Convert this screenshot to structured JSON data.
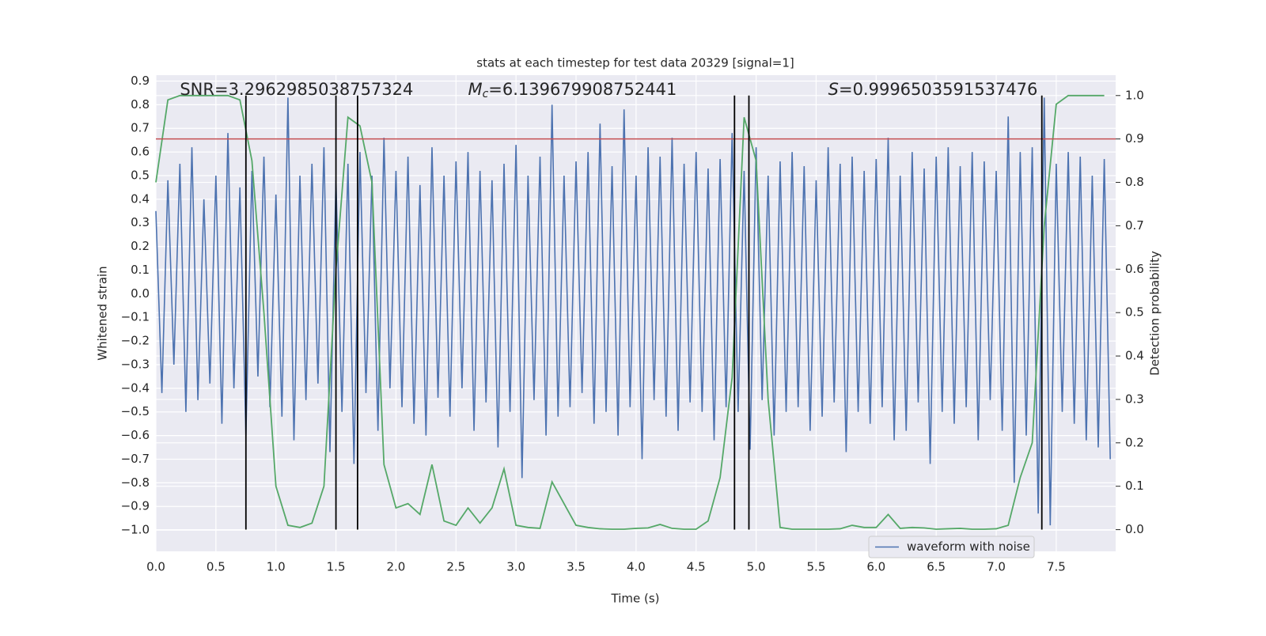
{
  "chart_data": {
    "type": "line",
    "title": "stats at each timestep for test data 20329 [signal=1]",
    "xlabel": "Time (s)",
    "ylabel": "Whitened strain",
    "y2label": "Detection probability",
    "annotations": [
      {
        "text": "SNR=3.2962985038757324",
        "x": 0.2
      },
      {
        "symbol": "M",
        "subscript": "c",
        "text": "=6.139679908752441",
        "x": 2.6
      },
      {
        "symbol": "S",
        "text": "=0.9996503591537476",
        "x": 5.6
      }
    ],
    "xlim": [
      0,
      7.995
    ],
    "ylim": [
      -1.09,
      0.925
    ],
    "y2lim": [
      -0.05,
      1.047
    ],
    "xticks": [
      {
        "value": 0,
        "label": "0.0"
      },
      {
        "value": 0.5,
        "label": "0.5"
      },
      {
        "value": 1,
        "label": "1.0"
      },
      {
        "value": 1.5,
        "label": "1.5"
      },
      {
        "value": 2,
        "label": "2.0"
      },
      {
        "value": 2.5,
        "label": "2.5"
      },
      {
        "value": 3,
        "label": "3.0"
      },
      {
        "value": 3.5,
        "label": "3.5"
      },
      {
        "value": 4,
        "label": "4.0"
      },
      {
        "value": 4.5,
        "label": "4.5"
      },
      {
        "value": 5,
        "label": "5.0"
      },
      {
        "value": 5.5,
        "label": "5.5"
      },
      {
        "value": 6,
        "label": "6.0"
      },
      {
        "value": 6.5,
        "label": "6.5"
      },
      {
        "value": 7,
        "label": "7.0"
      },
      {
        "value": 7.5,
        "label": "7.5"
      }
    ],
    "yticks": [
      {
        "value": -1,
        "label": "−1.0"
      },
      {
        "value": -0.9,
        "label": "−0.9"
      },
      {
        "value": -0.8,
        "label": "−0.8"
      },
      {
        "value": -0.7,
        "label": "−0.7"
      },
      {
        "value": -0.6,
        "label": "−0.6"
      },
      {
        "value": -0.5,
        "label": "−0.5"
      },
      {
        "value": -0.4,
        "label": "−0.4"
      },
      {
        "value": -0.3,
        "label": "−0.3"
      },
      {
        "value": -0.2,
        "label": "−0.2"
      },
      {
        "value": -0.1,
        "label": "−0.1"
      },
      {
        "value": 0,
        "label": "0.0"
      },
      {
        "value": 0.1,
        "label": "0.1"
      },
      {
        "value": 0.2,
        "label": "0.2"
      },
      {
        "value": 0.3,
        "label": "0.3"
      },
      {
        "value": 0.4,
        "label": "0.4"
      },
      {
        "value": 0.5,
        "label": "0.5"
      },
      {
        "value": 0.6,
        "label": "0.6"
      },
      {
        "value": 0.7,
        "label": "0.7"
      },
      {
        "value": 0.8,
        "label": "0.8"
      },
      {
        "value": 0.9,
        "label": "0.9"
      }
    ],
    "y2ticks": [
      {
        "value": 0,
        "label": "0.0"
      },
      {
        "value": 0.1,
        "label": "0.1"
      },
      {
        "value": 0.2,
        "label": "0.2"
      },
      {
        "value": 0.3,
        "label": "0.3"
      },
      {
        "value": 0.4,
        "label": "0.4"
      },
      {
        "value": 0.5,
        "label": "0.5"
      },
      {
        "value": 0.6,
        "label": "0.6"
      },
      {
        "value": 0.7,
        "label": "0.7"
      },
      {
        "value": 0.8,
        "label": "0.8"
      },
      {
        "value": 0.9,
        "label": "0.9"
      },
      {
        "value": 1,
        "label": "1.0"
      }
    ],
    "grid": true,
    "legend": "lower right",
    "series": [
      {
        "name": "waveform with noise",
        "color": "#4c72b0",
        "x": [
          0,
          0.05,
          0.1,
          0.15,
          0.2,
          0.25,
          0.3,
          0.35,
          0.4,
          0.45,
          0.5,
          0.55,
          0.6,
          0.65,
          0.7,
          0.75,
          0.8,
          0.85,
          0.9,
          0.95,
          1,
          1.05,
          1.1,
          1.15,
          1.2,
          1.25,
          1.3,
          1.35,
          1.4,
          1.45,
          1.5,
          1.55,
          1.6,
          1.65,
          1.7,
          1.75,
          1.8,
          1.85,
          1.9,
          1.95,
          2,
          2.05,
          2.1,
          2.15,
          2.2,
          2.25,
          2.3,
          2.35,
          2.4,
          2.45,
          2.5,
          2.55,
          2.6,
          2.65,
          2.7,
          2.75,
          2.8,
          2.85,
          2.9,
          2.95,
          3,
          3.05,
          3.1,
          3.15,
          3.2,
          3.25,
          3.3,
          3.35,
          3.4,
          3.45,
          3.5,
          3.55,
          3.6,
          3.65,
          3.7,
          3.75,
          3.8,
          3.85,
          3.9,
          3.95,
          4,
          4.05,
          4.1,
          4.15,
          4.2,
          4.25,
          4.3,
          4.35,
          4.4,
          4.45,
          4.5,
          4.55,
          4.6,
          4.65,
          4.7,
          4.75,
          4.8,
          4.85,
          4.9,
          4.95,
          5,
          5.05,
          5.1,
          5.15,
          5.2,
          5.25,
          5.3,
          5.35,
          5.4,
          5.45,
          5.5,
          5.55,
          5.6,
          5.65,
          5.7,
          5.75,
          5.8,
          5.85,
          5.9,
          5.95,
          6,
          6.05,
          6.1,
          6.15,
          6.2,
          6.25,
          6.3,
          6.35,
          6.4,
          6.45,
          6.5,
          6.55,
          6.6,
          6.65,
          6.7,
          6.75,
          6.8,
          6.85,
          6.9,
          6.95,
          7,
          7.05,
          7.1,
          7.15,
          7.2,
          7.25,
          7.3,
          7.35,
          7.4,
          7.45,
          7.5,
          7.55,
          7.6,
          7.65,
          7.7,
          7.75,
          7.8,
          7.85,
          7.9,
          7.95
        ],
        "values": [
          0.35,
          -0.42,
          0.48,
          -0.3,
          0.55,
          -0.5,
          0.62,
          -0.45,
          0.4,
          -0.38,
          0.5,
          -0.55,
          0.68,
          -0.4,
          0.45,
          -0.6,
          0.52,
          -0.35,
          0.58,
          -0.48,
          0.42,
          -0.52,
          0.83,
          -0.62,
          0.5,
          -0.45,
          0.55,
          -0.38,
          0.62,
          -0.67,
          0.48,
          -0.5,
          0.55,
          -0.72,
          0.6,
          -0.42,
          0.5,
          -0.58,
          0.66,
          -0.4,
          0.52,
          -0.48,
          0.58,
          -0.55,
          0.46,
          -0.6,
          0.62,
          -0.44,
          0.5,
          -0.52,
          0.56,
          -0.4,
          0.6,
          -0.58,
          0.52,
          -0.46,
          0.48,
          -0.65,
          0.55,
          -0.5,
          0.63,
          -0.78,
          0.5,
          -0.45,
          0.58,
          -0.6,
          0.8,
          -0.52,
          0.5,
          -0.48,
          0.56,
          -0.42,
          0.6,
          -0.55,
          0.72,
          -0.5,
          0.54,
          -0.6,
          0.78,
          -0.48,
          0.5,
          -0.7,
          0.62,
          -0.45,
          0.58,
          -0.52,
          0.66,
          -0.58,
          0.55,
          -0.46,
          0.6,
          -0.5,
          0.53,
          -0.62,
          0.57,
          -0.48,
          0.68,
          -0.5,
          0.52,
          -0.66,
          0.62,
          -0.45,
          0.5,
          -0.6,
          0.56,
          -0.5,
          0.6,
          -0.48,
          0.54,
          -0.58,
          0.48,
          -0.52,
          0.62,
          -0.46,
          0.55,
          -0.67,
          0.58,
          -0.5,
          0.52,
          -0.55,
          0.57,
          -0.48,
          0.66,
          -0.62,
          0.5,
          -0.58,
          0.6,
          -0.46,
          0.53,
          -0.72,
          0.58,
          -0.5,
          0.62,
          -0.55,
          0.54,
          -0.48,
          0.6,
          -0.62,
          0.56,
          -0.45,
          0.52,
          -0.58,
          0.75,
          -0.8,
          0.6,
          -0.6,
          0.62,
          -0.93,
          0.83,
          -0.98,
          0.55,
          -0.5,
          0.6,
          -0.55,
          0.58,
          -0.62,
          0.5,
          -0.65,
          0.57,
          -0.7
        ]
      },
      {
        "color": "#55a868",
        "axis": "y2",
        "x": [
          0,
          0.1,
          0.2,
          0.3,
          0.4,
          0.5,
          0.6,
          0.7,
          0.8,
          0.9,
          1,
          1.1,
          1.2,
          1.3,
          1.4,
          1.5,
          1.6,
          1.7,
          1.8,
          1.9,
          2,
          2.1,
          2.2,
          2.3,
          2.4,
          2.5,
          2.6,
          2.7,
          2.8,
          2.9,
          3,
          3.1,
          3.2,
          3.3,
          3.4,
          3.5,
          3.6,
          3.7,
          3.8,
          3.9,
          4,
          4.1,
          4.2,
          4.3,
          4.4,
          4.5,
          4.6,
          4.7,
          4.8,
          4.9,
          5,
          5.1,
          5.2,
          5.3,
          5.4,
          5.5,
          5.6,
          5.7,
          5.8,
          5.9,
          6,
          6.1,
          6.2,
          6.3,
          6.4,
          6.5,
          6.6,
          6.7,
          6.8,
          6.9,
          7,
          7.1,
          7.2,
          7.3,
          7.4,
          7.5,
          7.6,
          7.7,
          7.8,
          7.9
        ],
        "values": [
          0.8,
          0.99,
          1,
          1,
          1,
          1,
          1,
          0.99,
          0.85,
          0.5,
          0.1,
          0.01,
          0.005,
          0.015,
          0.1,
          0.6,
          0.95,
          0.93,
          0.8,
          0.15,
          0.05,
          0.06,
          0.035,
          0.15,
          0.02,
          0.01,
          0.05,
          0.015,
          0.05,
          0.14,
          0.01,
          0.005,
          0.003,
          0.11,
          0.06,
          0.01,
          0.005,
          0.002,
          0.001,
          0.001,
          0.003,
          0.004,
          0.012,
          0.003,
          0.001,
          0.001,
          0.02,
          0.12,
          0.35,
          0.95,
          0.85,
          0.3,
          0.005,
          0.001,
          0.001,
          0.001,
          0.001,
          0.002,
          0.01,
          0.005,
          0.005,
          0.035,
          0.003,
          0.005,
          0.004,
          0.001,
          0.002,
          0.003,
          0.001,
          0.001,
          0.002,
          0.01,
          0.12,
          0.2,
          0.7,
          0.98,
          1,
          1,
          1,
          1
        ]
      }
    ],
    "vlines": {
      "x": [
        0.75,
        1.5,
        1.68,
        4.82,
        4.94,
        7.38
      ],
      "ymin": 0,
      "ymax": 1,
      "axis": "y2",
      "color": "#000000"
    },
    "hline": {
      "y": 0.9,
      "axis": "y2",
      "color": "#c44e52"
    }
  }
}
